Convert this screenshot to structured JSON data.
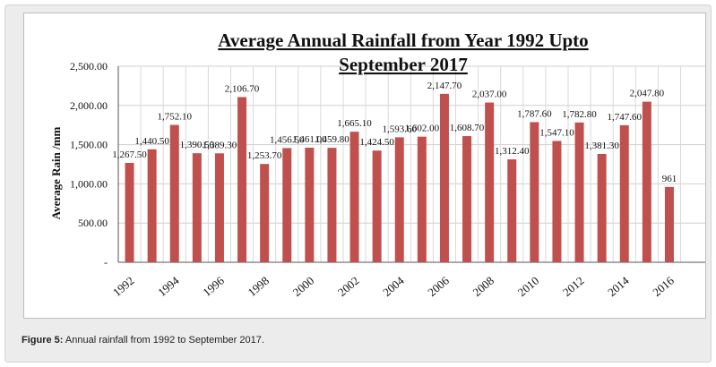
{
  "figure": {
    "caption_label": "Figure 5:",
    "caption_text": " Annual rainfall from 1992 to September 2017."
  },
  "chart_data": {
    "type": "bar",
    "title_line1": "Average Annual  Rainfall   from Year 1992 Upto",
    "title_line2": "September 2017",
    "xlabel": "",
    "ylabel": "Average Rain /mm",
    "ylim": [
      0,
      2500
    ],
    "y_ticks": [
      0,
      500,
      1000,
      1500,
      2000,
      2500
    ],
    "y_tick_labels": [
      "-",
      "500.00",
      "1,000.00",
      "1,500.00",
      "2,000.00",
      "2,500.00"
    ],
    "x_tick_labels": [
      "1992",
      "1994",
      "1996",
      "1998",
      "2000",
      "2002",
      "2004",
      "2006",
      "2008",
      "2010",
      "2012",
      "2014",
      "2016"
    ],
    "years": [
      1992,
      1993,
      1994,
      1995,
      1996,
      1997,
      1998,
      1999,
      2000,
      2001,
      2002,
      2003,
      2004,
      2005,
      2006,
      2007,
      2008,
      2009,
      2010,
      2011,
      2012,
      2013,
      2014,
      2015,
      2016
    ],
    "values": [
      1267.5,
      1440.5,
      1752.1,
      1390.5,
      1389.3,
      2106.7,
      1253.7,
      1456.5,
      1461.0,
      1459.8,
      1665.1,
      1424.5,
      1593.6,
      1602.0,
      2147.7,
      1608.7,
      2037.0,
      1312.4,
      1787.6,
      1547.1,
      1782.8,
      1381.3,
      1747.6,
      2047.8,
      961
    ],
    "data_labels": [
      "1,267.50",
      "1,440.50",
      "1,752.10",
      "1,390.50",
      "1,389.30",
      "2,106.70",
      "1,253.70",
      "1,456.50",
      "1,461.00",
      "1,459.80",
      "1,665.10",
      "1,424.50",
      "1,593.60",
      "1,602.00",
      "2,147.70",
      "1,608.70",
      "2,037.00",
      "1,312.40",
      "1,787.60",
      "1,547.10",
      "1,782.80",
      "1,381.30",
      "1,747.60",
      "2,047.80",
      "961"
    ],
    "bar_color": "#c0504d",
    "grid": true,
    "legend": "none"
  }
}
